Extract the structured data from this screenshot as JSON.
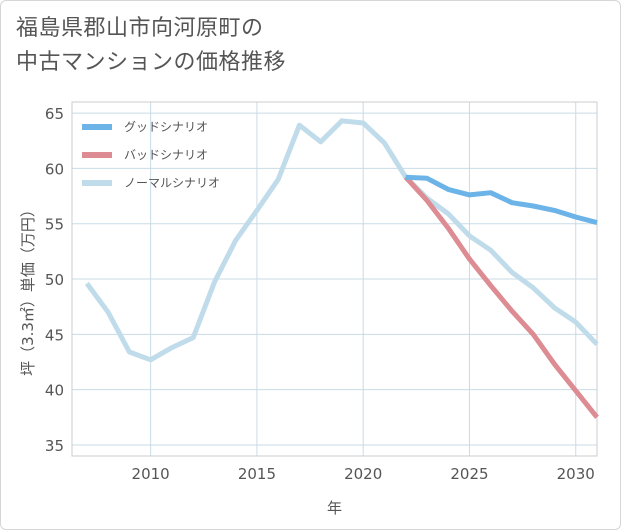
{
  "title_lines": [
    "福島県郡山市向河原町の",
    "中古マンションの価格推移"
  ],
  "chart_data": {
    "type": "line",
    "title": "福島県郡山市向河原町の中古マンションの価格推移",
    "xlabel": "年",
    "ylabel": "坪（3.3㎡）単価（万円）",
    "xlim": [
      2006.3,
      2031
    ],
    "ylim": [
      34,
      66
    ],
    "xticks": [
      2010,
      2015,
      2020,
      2025,
      2030
    ],
    "yticks": [
      35,
      40,
      45,
      50,
      55,
      60,
      65
    ],
    "grid": true,
    "legend_position": "top-left",
    "series": [
      {
        "name": "グッドシナリオ",
        "color": "#6cb4e8",
        "x": [
          2022,
          2023,
          2024,
          2025,
          2026,
          2027,
          2028,
          2029,
          2030,
          2031
        ],
        "values": [
          59.2,
          59.1,
          58.1,
          57.6,
          57.8,
          56.9,
          56.6,
          56.2,
          55.6,
          55.1
        ]
      },
      {
        "name": "バッドシナリオ",
        "color": "#dc8c92",
        "x": [
          2022,
          2023,
          2024,
          2025,
          2026,
          2027,
          2028,
          2029,
          2030,
          2031
        ],
        "values": [
          59.2,
          57.1,
          54.6,
          51.8,
          49.4,
          47.1,
          45.0,
          42.3,
          39.9,
          37.5
        ]
      },
      {
        "name": "ノーマルシナリオ",
        "color": "#c0dcea",
        "x": [
          2007,
          2008,
          2009,
          2010,
          2011,
          2012,
          2013,
          2014,
          2015,
          2016,
          2017,
          2018,
          2019,
          2020,
          2021,
          2022,
          2023,
          2024,
          2025,
          2026,
          2027,
          2028,
          2029,
          2030,
          2031
        ],
        "values": [
          49.6,
          47.0,
          43.4,
          42.7,
          43.8,
          44.7,
          49.7,
          53.5,
          56.2,
          59.0,
          63.9,
          62.4,
          64.3,
          64.1,
          62.3,
          59.2,
          57.3,
          55.9,
          53.9,
          52.6,
          50.6,
          49.2,
          47.4,
          46.1,
          44.1
        ]
      }
    ]
  }
}
